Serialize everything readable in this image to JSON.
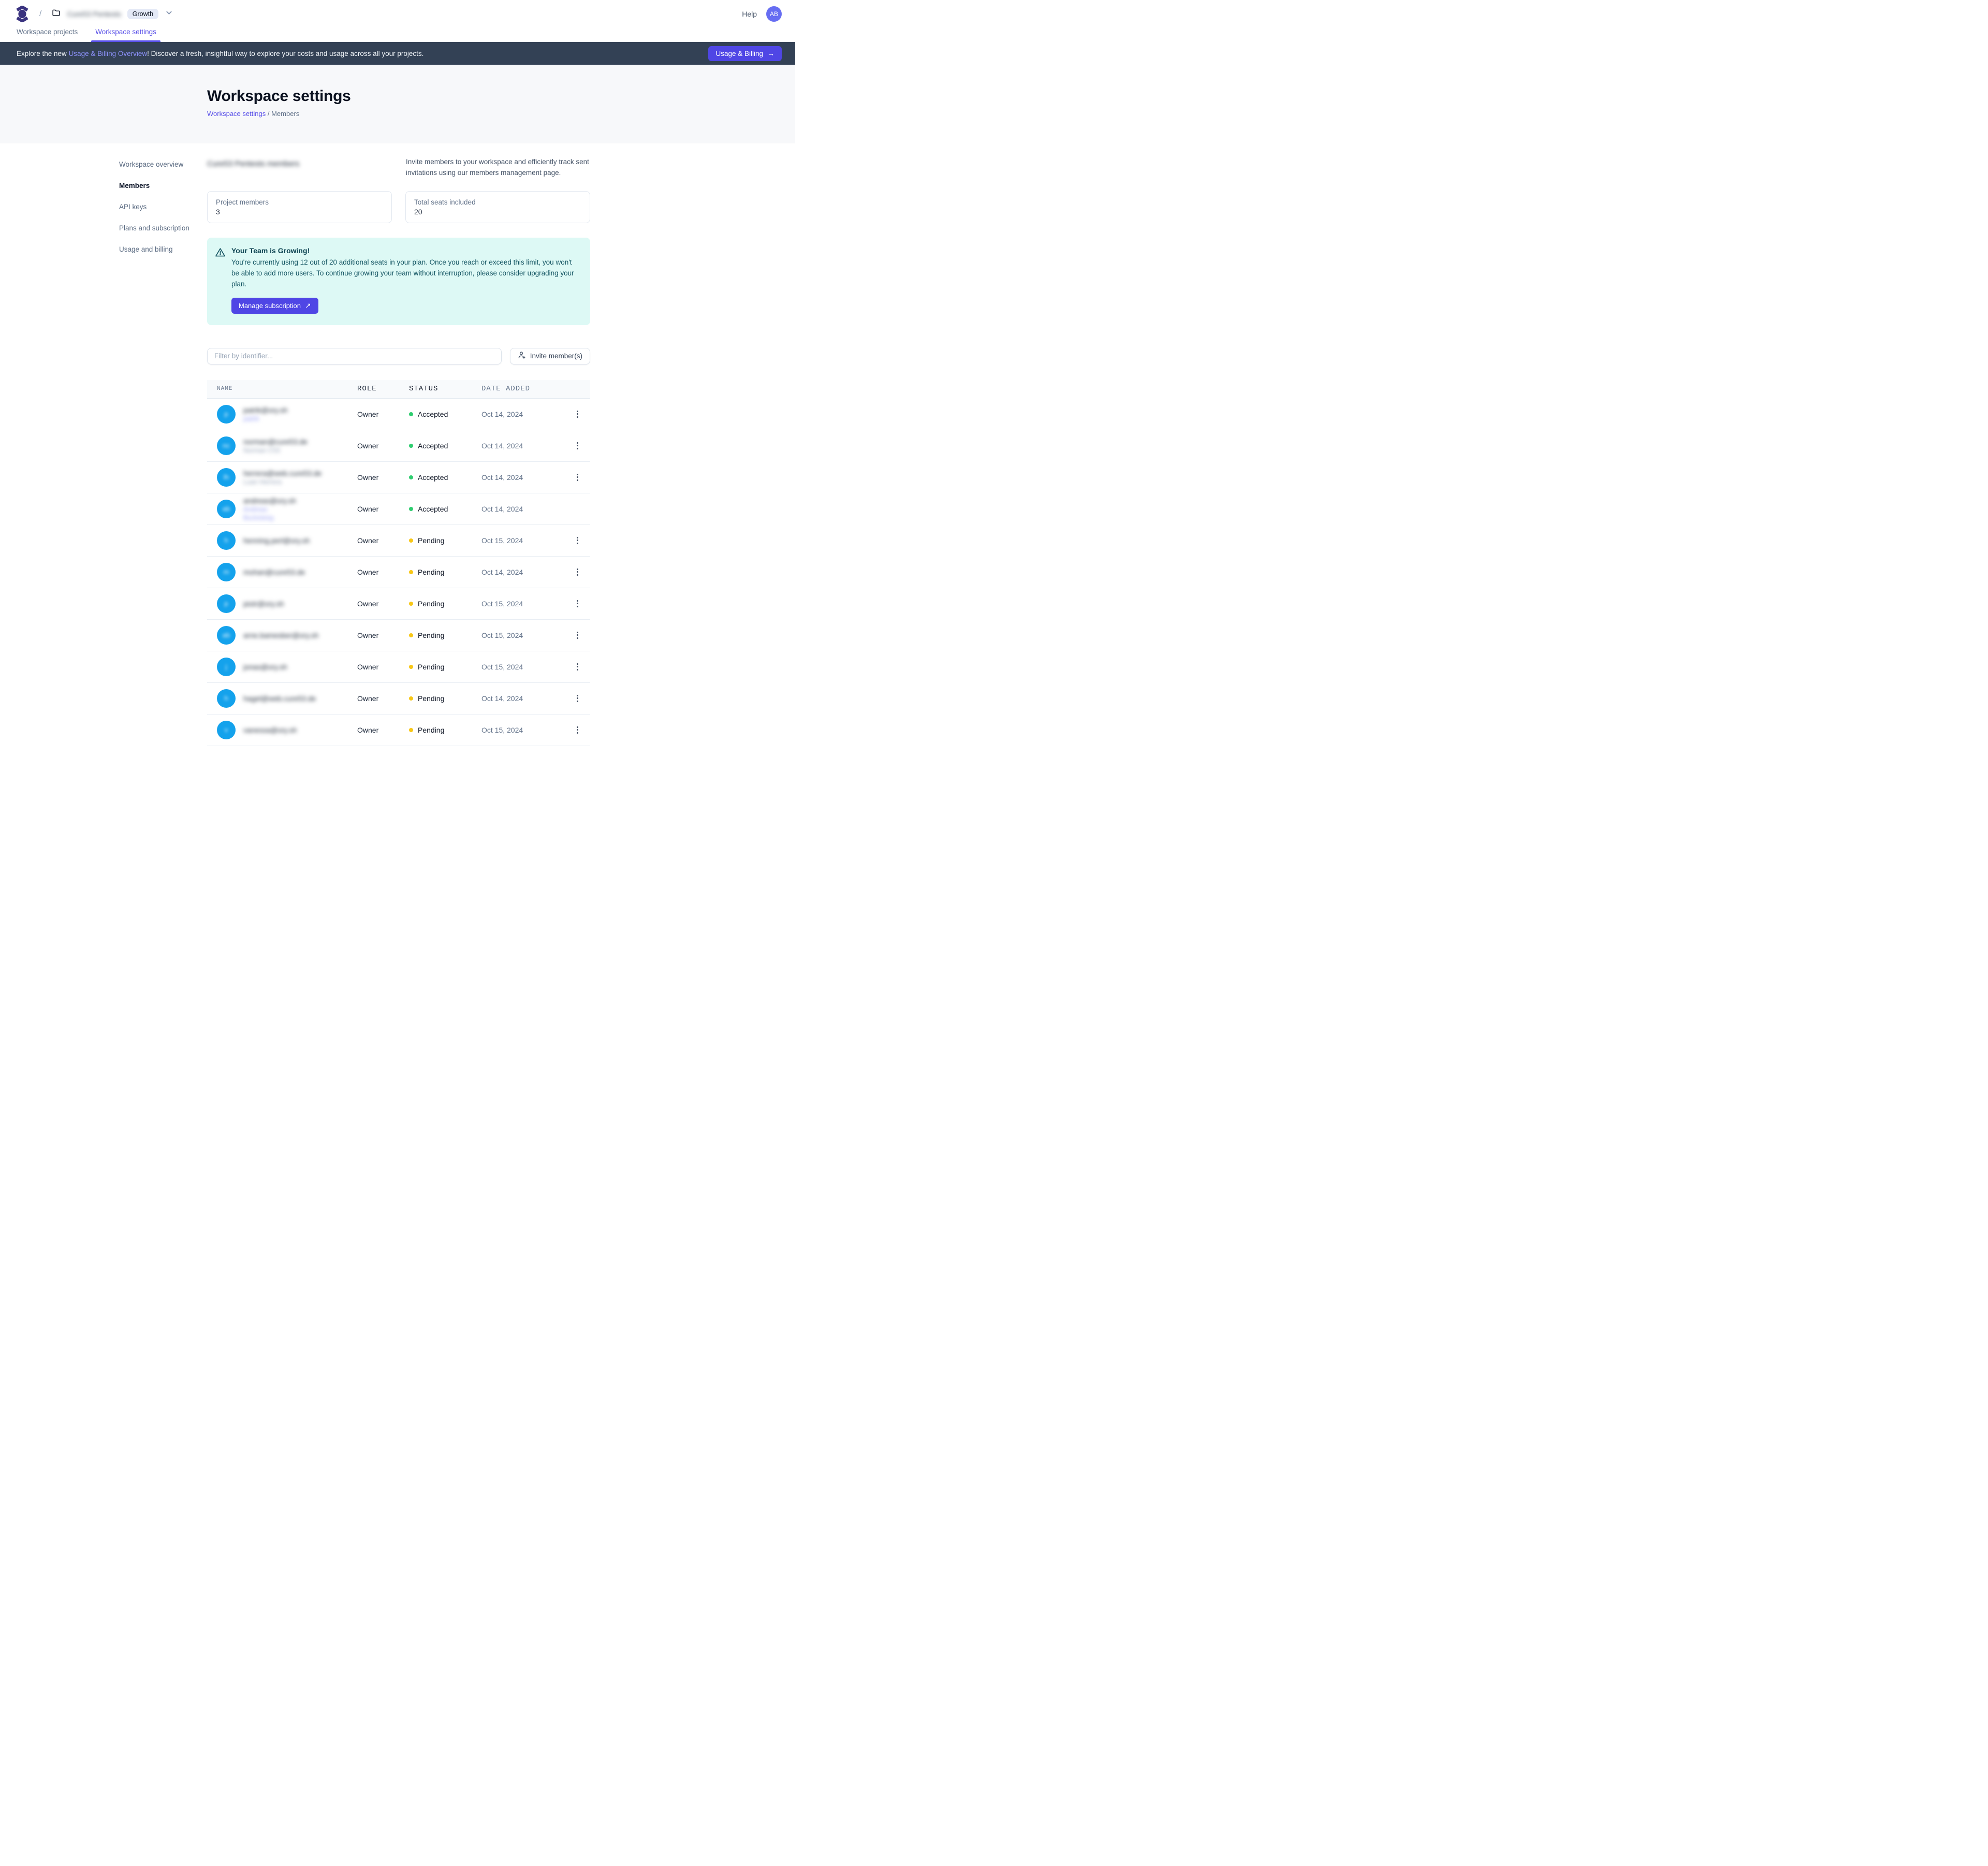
{
  "colors": {
    "accent": "#4f46e5",
    "banner_bg": "#334155",
    "accepted_dot": "#2fcd6f",
    "pending_dot": "#f8c716",
    "avatar_bg": "#14a2ec",
    "alert_bg": "#ddf9f5"
  },
  "topbar": {
    "crumb_separator": "/",
    "workspace_name": "Cure53 Pentests",
    "plan_badge": "Growth",
    "help_label": "Help",
    "avatar_initials": "AB"
  },
  "tabs": [
    {
      "label": "Workspace projects",
      "active": false
    },
    {
      "label": "Workspace settings",
      "active": true
    }
  ],
  "banner": {
    "text_prefix": "Explore the new ",
    "link_text": "Usage & Billing Overview",
    "text_suffix": "! Discover a fresh, insightful way to explore your costs and usage across all your projects.",
    "button_label": "Usage & Billing",
    "button_arrow": "→"
  },
  "page_header": {
    "title": "Workspace settings",
    "crumb_link": "Workspace settings",
    "crumb_separator": "/",
    "crumb_current": "Members"
  },
  "sidebar": {
    "items": [
      {
        "label": "Workspace overview",
        "active": false
      },
      {
        "label": "Members",
        "active": true
      },
      {
        "label": "API keys",
        "active": false
      },
      {
        "label": "Plans and subscription",
        "active": false
      },
      {
        "label": "Usage and billing",
        "active": false
      }
    ]
  },
  "members_section": {
    "heading": "Cure53 Pentests members",
    "heading_redacted": true,
    "description": "Invite members to your workspace and efficiently track sent invitations using our members management page.",
    "stats": [
      {
        "label": "Project members",
        "value": "3"
      },
      {
        "label": "Total seats included",
        "value": "20"
      }
    ]
  },
  "alert": {
    "title": "Your Team is Growing!",
    "body": "You're currently using 12 out of 20 additional seats in your plan. Once you reach or exceed this limit, you won't be able to add more users. To continue growing your team without interruption, please consider upgrading your plan.",
    "button_label": "Manage subscription",
    "button_arrow": "↗"
  },
  "toolbar": {
    "filter_placeholder": "Filter by identifier...",
    "invite_button_label": "Invite member(s)"
  },
  "table": {
    "columns": [
      "NAME",
      "ROLE",
      "STATUS",
      "DATE ADDED"
    ],
    "rows_redacted": true,
    "rows": [
      {
        "initials": "p",
        "email": "patrik@ory.sh",
        "name_lines": [
          {
            "text": "patrik",
            "tone": "indigo"
          }
        ],
        "role": "Owner",
        "status": "Accepted",
        "status_tone": "accepted",
        "date": "Oct 14, 2024",
        "menu": true
      },
      {
        "initials": "nc",
        "email": "norman@cure53.de",
        "name_lines": [
          {
            "text": "Norman C53",
            "tone": "gray"
          }
        ],
        "role": "Owner",
        "status": "Accepted",
        "status_tone": "accepted",
        "date": "Oct 14, 2024",
        "menu": true
      },
      {
        "initials": "lh",
        "email": "herrera@web.cure53.de",
        "name_lines": [
          {
            "text": "Luan Herrera",
            "tone": "gray"
          }
        ],
        "role": "Owner",
        "status": "Accepted",
        "status_tone": "accepted",
        "date": "Oct 14, 2024",
        "menu": true
      },
      {
        "initials": "ab",
        "email": "andreas@ory.sh",
        "name_lines": [
          {
            "text": "Andreas",
            "tone": "indigo"
          },
          {
            "text": "Bucksteeg",
            "tone": "indigo"
          }
        ],
        "role": "Owner",
        "status": "Accepted",
        "status_tone": "accepted",
        "date": "Oct 14, 2024",
        "menu": false
      },
      {
        "initials": "h",
        "email": "henning.perl@ory.sh",
        "name_lines": [],
        "role": "Owner",
        "status": "Pending",
        "status_tone": "pending",
        "date": "Oct 15, 2024",
        "menu": true
      },
      {
        "initials": "m",
        "email": "mohan@cure53.de",
        "name_lines": [],
        "role": "Owner",
        "status": "Pending",
        "status_tone": "pending",
        "date": "Oct 14, 2024",
        "menu": true
      },
      {
        "initials": "p",
        "email": "piotr@ory.sh",
        "name_lines": [],
        "role": "Owner",
        "status": "Pending",
        "status_tone": "pending",
        "date": "Oct 15, 2024",
        "menu": true
      },
      {
        "initials": "ab",
        "email": "arne.bamesber@ory.sh",
        "name_lines": [],
        "role": "Owner",
        "status": "Pending",
        "status_tone": "pending",
        "date": "Oct 15, 2024",
        "menu": true
      },
      {
        "initials": "j",
        "email": "jonas@ory.sh",
        "name_lines": [],
        "role": "Owner",
        "status": "Pending",
        "status_tone": "pending",
        "date": "Oct 15, 2024",
        "menu": true
      },
      {
        "initials": "h",
        "email": "hagel@web.cure53.de",
        "name_lines": [],
        "role": "Owner",
        "status": "Pending",
        "status_tone": "pending",
        "date": "Oct 14, 2024",
        "menu": true
      },
      {
        "initials": "v",
        "email": "vanessa@ory.sh",
        "name_lines": [],
        "role": "Owner",
        "status": "Pending",
        "status_tone": "pending",
        "date": "Oct 15, 2024",
        "menu": true
      }
    ]
  }
}
